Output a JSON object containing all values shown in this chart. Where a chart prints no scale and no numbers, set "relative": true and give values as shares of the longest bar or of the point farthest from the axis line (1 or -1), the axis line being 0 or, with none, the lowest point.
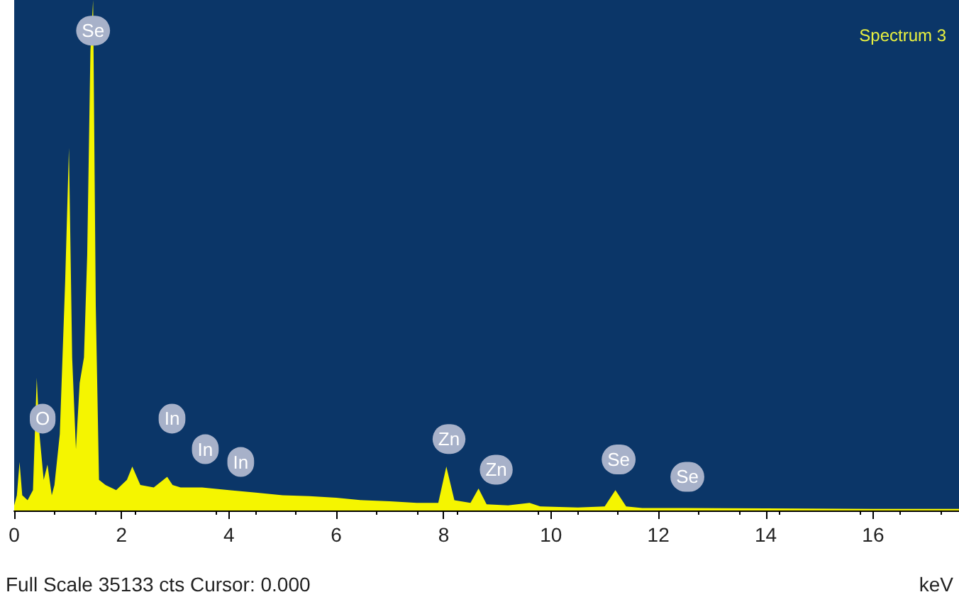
{
  "chart_data": {
    "type": "area",
    "title": "Spectrum 3",
    "xlabel": "keV",
    "relative": true,
    "x": [
      0,
      0.05,
      0.1,
      0.15,
      0.25,
      0.35,
      0.42,
      0.47,
      0.55,
      0.62,
      0.7,
      0.75,
      0.85,
      0.95,
      1.02,
      1.08,
      1.15,
      1.22,
      1.3,
      1.36,
      1.42,
      1.47,
      1.52,
      1.58,
      1.7,
      1.9,
      2.1,
      2.2,
      2.35,
      2.6,
      2.85,
      2.95,
      3.1,
      3.5,
      4,
      4.5,
      5,
      5.5,
      6,
      6.5,
      7,
      7.5,
      7.9,
      8.05,
      8.2,
      8.5,
      8.65,
      8.8,
      9.2,
      9.6,
      9.8,
      10.5,
      11,
      11.2,
      11.4,
      11.7,
      12.5,
      14,
      16,
      17.6
    ],
    "series": [
      {
        "color": "#f5f500",
        "values": [
          0.01,
          0.03,
          0.095,
          0.03,
          0.02,
          0.04,
          0.26,
          0.15,
          0.06,
          0.09,
          0.03,
          0.05,
          0.15,
          0.45,
          0.71,
          0.3,
          0.12,
          0.25,
          0.3,
          0.5,
          0.9,
          1,
          0.4,
          0.06,
          0.05,
          0.04,
          0.06,
          0.086,
          0.05,
          0.045,
          0.066,
          0.05,
          0.045,
          0.045,
          0.04,
          0.035,
          0.03,
          0.028,
          0.025,
          0.02,
          0.018,
          0.015,
          0.015,
          0.086,
          0.02,
          0.015,
          0.043,
          0.012,
          0.01,
          0.015,
          0.008,
          0.006,
          0.008,
          0.04,
          0.008,
          0.005,
          0.005,
          0.004,
          0.003,
          0.003
        ]
      }
    ],
    "xlim": [
      0,
      17.6
    ],
    "xticks": [
      0,
      2,
      4,
      6,
      8,
      10,
      12,
      14,
      16
    ],
    "grid": false,
    "marker": "none",
    "annotations": [
      {
        "text": "Se",
        "x": 1.47,
        "y": 0.94
      },
      {
        "text": "O",
        "x": 0.53,
        "y": 0.18
      },
      {
        "text": "In",
        "x": 2.94,
        "y": 0.18
      },
      {
        "text": "In",
        "x": 3.56,
        "y": 0.12
      },
      {
        "text": "In",
        "x": 4.22,
        "y": 0.095
      },
      {
        "text": "Zn",
        "x": 8.1,
        "y": 0.14
      },
      {
        "text": "Zn",
        "x": 8.98,
        "y": 0.08
      },
      {
        "text": "Se",
        "x": 11.26,
        "y": 0.1
      },
      {
        "text": "Se",
        "x": 12.54,
        "y": 0.066
      },
      "Full Scale 35133 cts Cursor: 0.000"
    ]
  }
}
